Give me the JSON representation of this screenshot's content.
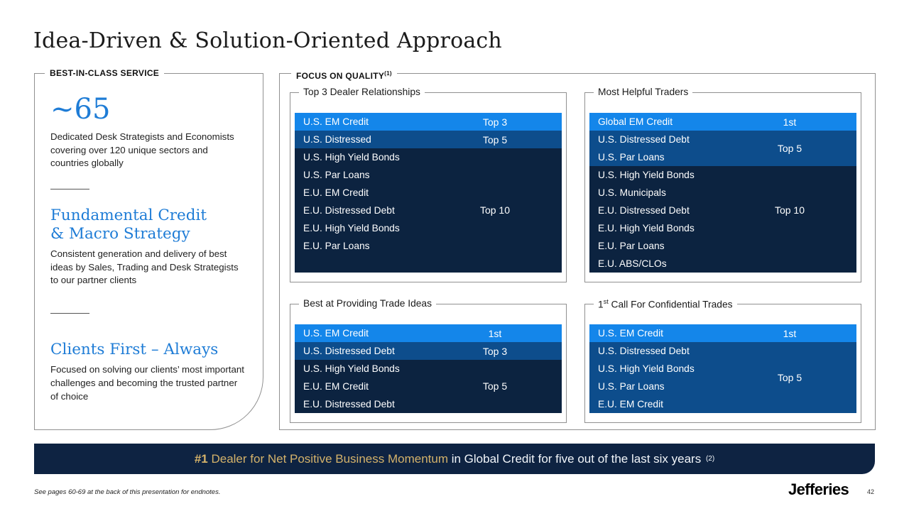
{
  "slide": {
    "title": "Idea-Driven & Solution-Oriented Approach",
    "footnote": "See pages 60-69 at the back of this presentation for endnotes.",
    "logo": "Jefferies",
    "page_number": "42"
  },
  "left_panel": {
    "heading": "BEST-IN-CLASS SERVICE",
    "stat_value": "~65",
    "stat_description": "Dedicated Desk Strategists and Economists covering over 120 unique sectors and countries globally",
    "sections": [
      {
        "title_lines": [
          "Fundamental Credit",
          "& Macro Strategy"
        ],
        "body": "Consistent generation and delivery of best ideas by Sales, Trading and Desk Strategists to our partner clients"
      },
      {
        "title_lines": [
          "Clients First – Always"
        ],
        "body": "Focused on solving our clients’ most important challenges and becoming the trusted partner of choice"
      }
    ]
  },
  "right_panel": {
    "heading": "FOCUS ON QUALITY",
    "heading_sup": "(1)",
    "boxes": [
      {
        "title": "Top 3 Dealer Relationships",
        "tiers": [
          {
            "tier": "bright",
            "rank": "Top 3",
            "items": [
              "U.S. EM Credit"
            ]
          },
          {
            "tier": "medium",
            "rank": "Top 5",
            "items": [
              "U.S. Distressed"
            ]
          },
          {
            "tier": "dark",
            "rank": "Top 10",
            "rank_row": 3,
            "extra_rows": 1,
            "items": [
              "U.S. High Yield Bonds",
              "U.S. Par Loans",
              "E.U. EM Credit",
              "E.U. Distressed Debt",
              "E.U. High Yield Bonds",
              "E.U. Par Loans"
            ]
          }
        ]
      },
      {
        "title": "Most Helpful Traders",
        "tiers": [
          {
            "tier": "bright",
            "rank": "1st",
            "items": [
              "Global EM Credit"
            ]
          },
          {
            "tier": "medium",
            "rank": "Top 5",
            "items": [
              "U.S. Distressed Debt",
              "U.S. Par Loans"
            ]
          },
          {
            "tier": "dark",
            "rank": "Top 10",
            "rank_row": 2,
            "items": [
              "U.S. High Yield Bonds",
              "U.S. Municipals",
              "E.U. Distressed Debt",
              "E.U. High Yield Bonds",
              "E.U. Par Loans",
              "E.U. ABS/CLOs"
            ]
          }
        ]
      },
      {
        "title": "Best at Providing Trade Ideas",
        "tiers": [
          {
            "tier": "bright",
            "rank": "1st",
            "items": [
              "U.S. EM Credit"
            ]
          },
          {
            "tier": "medium",
            "rank": "Top 3",
            "items": [
              "U.S. Distressed Debt"
            ]
          },
          {
            "tier": "dark",
            "rank": "Top 5",
            "rank_row": 1,
            "items": [
              "U.S. High Yield Bonds",
              "E.U. EM Credit",
              "E.U. Distressed Debt"
            ]
          }
        ]
      },
      {
        "title_pre": "1",
        "title_sup": "st",
        "title": " Call For Confidential Trades",
        "tiers": [
          {
            "tier": "bright",
            "rank": "1st",
            "items": [
              "U.S. EM Credit"
            ]
          },
          {
            "tier": "medium",
            "rank": "Top 5",
            "items": [
              "U.S. Distressed Debt",
              "U.S. High Yield Bonds",
              "U.S. Par Loans",
              "E.U. EM Credit"
            ]
          }
        ]
      }
    ]
  },
  "banner": {
    "rank": "#1",
    "highlight": " Dealer for Net Positive Business Momentum",
    "rest": " in Global Credit for five out of the last six years ",
    "sup": "(2)"
  },
  "colors": {
    "tier_bright": "#1486EA",
    "tier_medium": "#0D4D8C",
    "tier_dark": "#0C2340",
    "banner_bg": "#0E2342",
    "accent_blue": "#1E7CD6",
    "gold": "#D4B26A"
  }
}
